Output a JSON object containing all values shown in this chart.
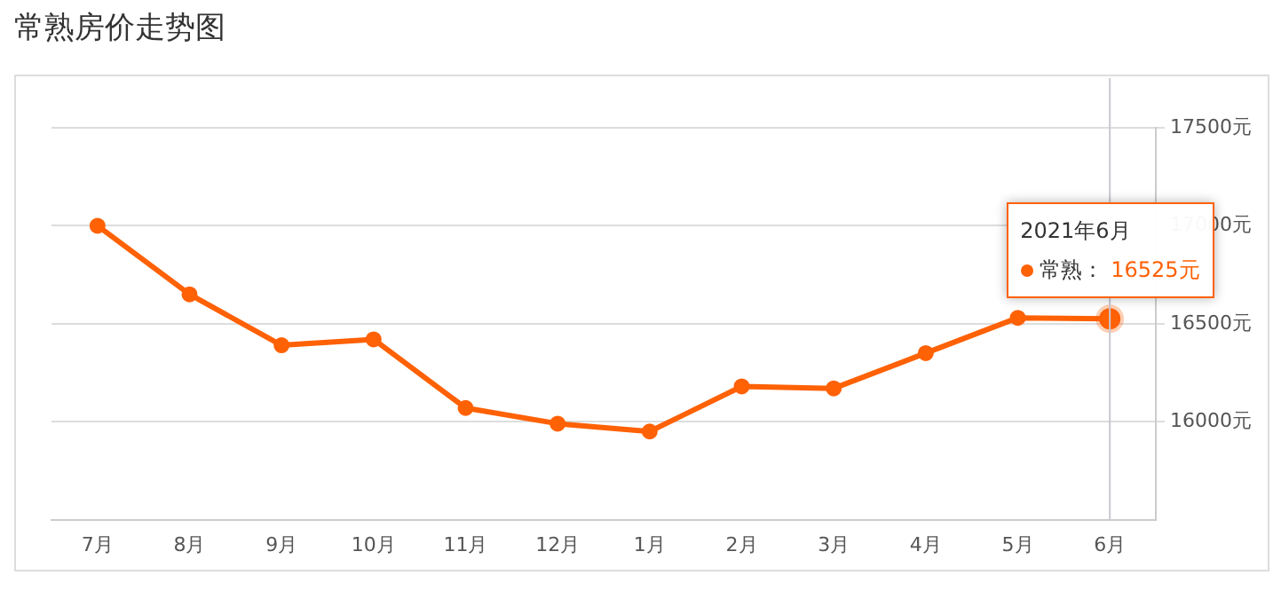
{
  "chart_data": {
    "type": "line",
    "title": "常熟房价走势图",
    "categories": [
      "7月",
      "8月",
      "9月",
      "10月",
      "11月",
      "12月",
      "1月",
      "2月",
      "3月",
      "4月",
      "5月",
      "6月"
    ],
    "series": [
      {
        "name": "常熟：",
        "color": "#ff6105",
        "values": [
          17000,
          16650,
          16390,
          16420,
          16070,
          15990,
          15950,
          16180,
          16170,
          16350,
          16530,
          16525
        ],
        "value_labels": [
          null,
          null,
          null,
          null,
          null,
          null,
          null,
          null,
          null,
          null,
          null,
          "16525元"
        ]
      }
    ],
    "ylim": [
      15500,
      17500
    ],
    "yticks": [
      {
        "value": 16000,
        "label": "16000元"
      },
      {
        "value": 16500,
        "label": "16500元"
      },
      {
        "value": 17000,
        "label": "17000元"
      },
      {
        "value": 17500,
        "label": "17500元"
      }
    ],
    "grid": "y",
    "legend": "top right",
    "marker": "circle",
    "line_style": "solid",
    "ref_lines": [
      {
        "axis": "x",
        "value": "6月",
        "color": "#c8c8d0"
      }
    ],
    "annotations": [
      "2021年6月"
    ]
  }
}
